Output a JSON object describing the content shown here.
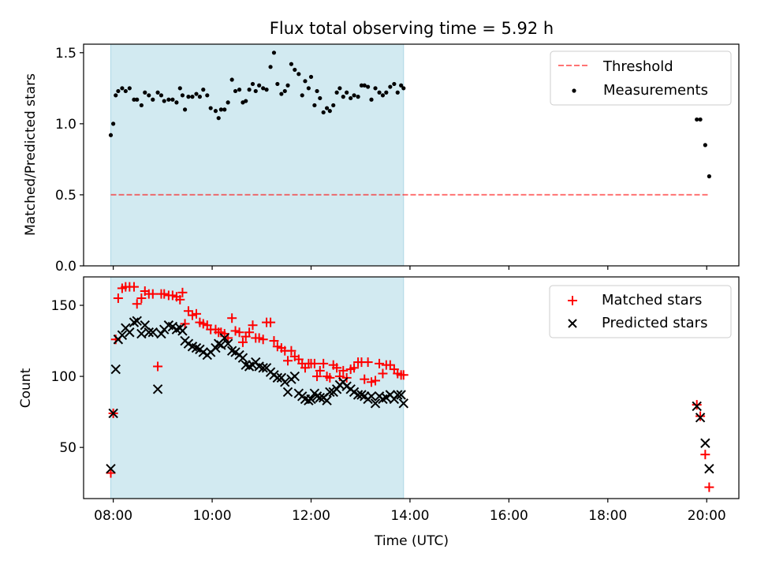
{
  "chart_data": [
    {
      "type": "scatter",
      "title": "Flux total observing time = 5.92 h",
      "xlabel": "",
      "ylabel": "Matched/Predicted stars",
      "xlim": [
        7.4,
        20.65
      ],
      "ylim": [
        0,
        1.56
      ],
      "yticks": [
        0,
        0.5,
        1.0,
        1.5
      ],
      "ytick_labels": [
        "0.0",
        "0.5",
        "1.0",
        "1.5"
      ],
      "xticks": [
        8,
        10,
        12,
        14,
        16,
        18,
        20
      ],
      "legend": {
        "placement": "upper right",
        "entries": [
          "Threshold",
          "Measurements"
        ]
      },
      "shaded_interval": [
        7.95,
        13.87
      ],
      "colors": {
        "shade": "#add8e6",
        "threshold": "#ff0000",
        "measurements": "#000000"
      },
      "threshold": {
        "name": "Threshold",
        "value": 0.5,
        "x_range": [
          7.95,
          20.05
        ]
      },
      "series": [
        {
          "name": "Measurements",
          "x": [
            7.95,
            8.0,
            8.05,
            8.1,
            8.18,
            8.25,
            8.33,
            8.42,
            8.48,
            8.57,
            8.64,
            8.72,
            8.8,
            8.9,
            8.97,
            9.03,
            9.12,
            9.2,
            9.28,
            9.35,
            9.4,
            9.45,
            9.52,
            9.6,
            9.68,
            9.75,
            9.82,
            9.9,
            9.97,
            10.07,
            10.13,
            10.18,
            10.25,
            10.32,
            10.4,
            10.47,
            10.55,
            10.62,
            10.68,
            10.75,
            10.82,
            10.88,
            10.95,
            11.03,
            11.1,
            11.18,
            11.25,
            11.32,
            11.4,
            11.47,
            11.53,
            11.6,
            11.67,
            11.75,
            11.82,
            11.88,
            11.95,
            12.0,
            12.07,
            12.12,
            12.18,
            12.25,
            12.32,
            12.38,
            12.45,
            12.52,
            12.58,
            12.65,
            12.72,
            12.8,
            12.87,
            12.95,
            13.02,
            13.08,
            13.15,
            13.22,
            13.3,
            13.38,
            13.45,
            13.52,
            13.6,
            13.68,
            13.75,
            13.82,
            13.87,
            19.8,
            19.87,
            19.97,
            20.05
          ],
          "y": [
            0.92,
            1.0,
            1.2,
            1.23,
            1.25,
            1.23,
            1.25,
            1.17,
            1.17,
            1.13,
            1.22,
            1.2,
            1.17,
            1.22,
            1.2,
            1.16,
            1.17,
            1.17,
            1.15,
            1.25,
            1.2,
            1.1,
            1.19,
            1.19,
            1.21,
            1.19,
            1.24,
            1.2,
            1.11,
            1.09,
            1.04,
            1.1,
            1.1,
            1.15,
            1.31,
            1.23,
            1.24,
            1.15,
            1.16,
            1.24,
            1.28,
            1.23,
            1.27,
            1.25,
            1.24,
            1.4,
            1.5,
            1.28,
            1.21,
            1.23,
            1.27,
            1.42,
            1.38,
            1.35,
            1.2,
            1.3,
            1.25,
            1.33,
            1.13,
            1.23,
            1.18,
            1.08,
            1.11,
            1.09,
            1.13,
            1.22,
            1.25,
            1.19,
            1.22,
            1.18,
            1.2,
            1.19,
            1.27,
            1.27,
            1.26,
            1.17,
            1.25,
            1.22,
            1.2,
            1.22,
            1.26,
            1.28,
            1.22,
            1.27,
            1.25,
            1.03,
            1.03,
            0.85,
            0.63
          ]
        }
      ]
    },
    {
      "type": "scatter",
      "title": "",
      "xlabel": "Time (UTC)",
      "ylabel": "Count",
      "xlim": [
        7.4,
        20.65
      ],
      "ylim": [
        14,
        170
      ],
      "yticks": [
        50,
        100,
        150
      ],
      "xticks": [
        8,
        10,
        12,
        14,
        16,
        18,
        20
      ],
      "xtick_labels": [
        "08:00",
        "10:00",
        "12:00",
        "14:00",
        "16:00",
        "18:00",
        "20:00"
      ],
      "legend": {
        "placement": "upper right",
        "entries": [
          "Matched stars",
          "Predicted stars"
        ]
      },
      "shaded_interval": [
        7.95,
        13.87
      ],
      "colors": {
        "shade": "#add8e6",
        "matched": "#ff0000",
        "predicted": "#000000"
      },
      "series": [
        {
          "name": "Matched stars",
          "marker": "plus",
          "x": [
            7.95,
            8.0,
            8.05,
            8.1,
            8.18,
            8.25,
            8.33,
            8.42,
            8.48,
            8.57,
            8.64,
            8.72,
            8.8,
            8.9,
            8.97,
            9.03,
            9.12,
            9.2,
            9.28,
            9.35,
            9.4,
            9.45,
            9.52,
            9.6,
            9.68,
            9.75,
            9.82,
            9.9,
            9.97,
            10.07,
            10.13,
            10.18,
            10.25,
            10.32,
            10.4,
            10.47,
            10.55,
            10.62,
            10.68,
            10.75,
            10.82,
            10.88,
            10.95,
            11.03,
            11.1,
            11.18,
            11.25,
            11.32,
            11.4,
            11.47,
            11.53,
            11.6,
            11.67,
            11.75,
            11.82,
            11.88,
            11.95,
            12.0,
            12.07,
            12.12,
            12.18,
            12.25,
            12.32,
            12.38,
            12.45,
            12.52,
            12.58,
            12.65,
            12.72,
            12.8,
            12.87,
            12.95,
            13.02,
            13.08,
            13.15,
            13.22,
            13.3,
            13.38,
            13.45,
            13.52,
            13.6,
            13.68,
            13.75,
            13.82,
            13.87,
            19.8,
            19.87,
            19.97,
            20.05
          ],
          "y": [
            32,
            74,
            126,
            155,
            162,
            163,
            163,
            163,
            151,
            155,
            160,
            158,
            158,
            107,
            158,
            158,
            157,
            157,
            156,
            154,
            159,
            137,
            146,
            143,
            144,
            138,
            137,
            136,
            133,
            133,
            131,
            131,
            130,
            127,
            141,
            132,
            131,
            124,
            128,
            131,
            136,
            127,
            127,
            126,
            138,
            138,
            125,
            121,
            120,
            118,
            111,
            118,
            114,
            112,
            109,
            106,
            109,
            109,
            109,
            100,
            104,
            109,
            100,
            99,
            108,
            106,
            100,
            104,
            99,
            105,
            106,
            110,
            110,
            98,
            110,
            96,
            97,
            109,
            102,
            108,
            108,
            105,
            102,
            101,
            101,
            80,
            72,
            45,
            22
          ]
        },
        {
          "name": "Predicted stars",
          "marker": "x",
          "x": [
            7.95,
            8.0,
            8.05,
            8.1,
            8.18,
            8.25,
            8.33,
            8.42,
            8.48,
            8.57,
            8.64,
            8.72,
            8.8,
            8.9,
            8.97,
            9.03,
            9.12,
            9.2,
            9.28,
            9.35,
            9.4,
            9.45,
            9.52,
            9.6,
            9.68,
            9.75,
            9.82,
            9.9,
            9.97,
            10.07,
            10.13,
            10.18,
            10.25,
            10.32,
            10.4,
            10.47,
            10.55,
            10.62,
            10.68,
            10.75,
            10.82,
            10.88,
            10.95,
            11.03,
            11.1,
            11.18,
            11.25,
            11.32,
            11.4,
            11.47,
            11.53,
            11.6,
            11.67,
            11.75,
            11.82,
            11.88,
            11.95,
            12.0,
            12.07,
            12.12,
            12.18,
            12.25,
            12.32,
            12.38,
            12.45,
            12.52,
            12.58,
            12.65,
            12.72,
            12.8,
            12.87,
            12.95,
            13.02,
            13.08,
            13.15,
            13.22,
            13.3,
            13.38,
            13.45,
            13.52,
            13.6,
            13.68,
            13.75,
            13.82,
            13.87,
            19.8,
            19.87,
            19.97,
            20.05
          ],
          "y": [
            35,
            74,
            105,
            126,
            129,
            134,
            131,
            138,
            139,
            130,
            136,
            131,
            131,
            91,
            130,
            133,
            136,
            135,
            133,
            134,
            132,
            125,
            123,
            121,
            120,
            119,
            117,
            115,
            117,
            120,
            123,
            122,
            127,
            123,
            118,
            117,
            115,
            113,
            108,
            107,
            108,
            110,
            107,
            106,
            106,
            103,
            101,
            99,
            99,
            96,
            89,
            98,
            100,
            88,
            86,
            84,
            83,
            84,
            88,
            86,
            85,
            85,
            83,
            89,
            89,
            91,
            94,
            96,
            93,
            91,
            89,
            87,
            87,
            86,
            84,
            86,
            81,
            86,
            84,
            85,
            87,
            84,
            87,
            87,
            81,
            79,
            71,
            53,
            35
          ]
        }
      ]
    }
  ]
}
